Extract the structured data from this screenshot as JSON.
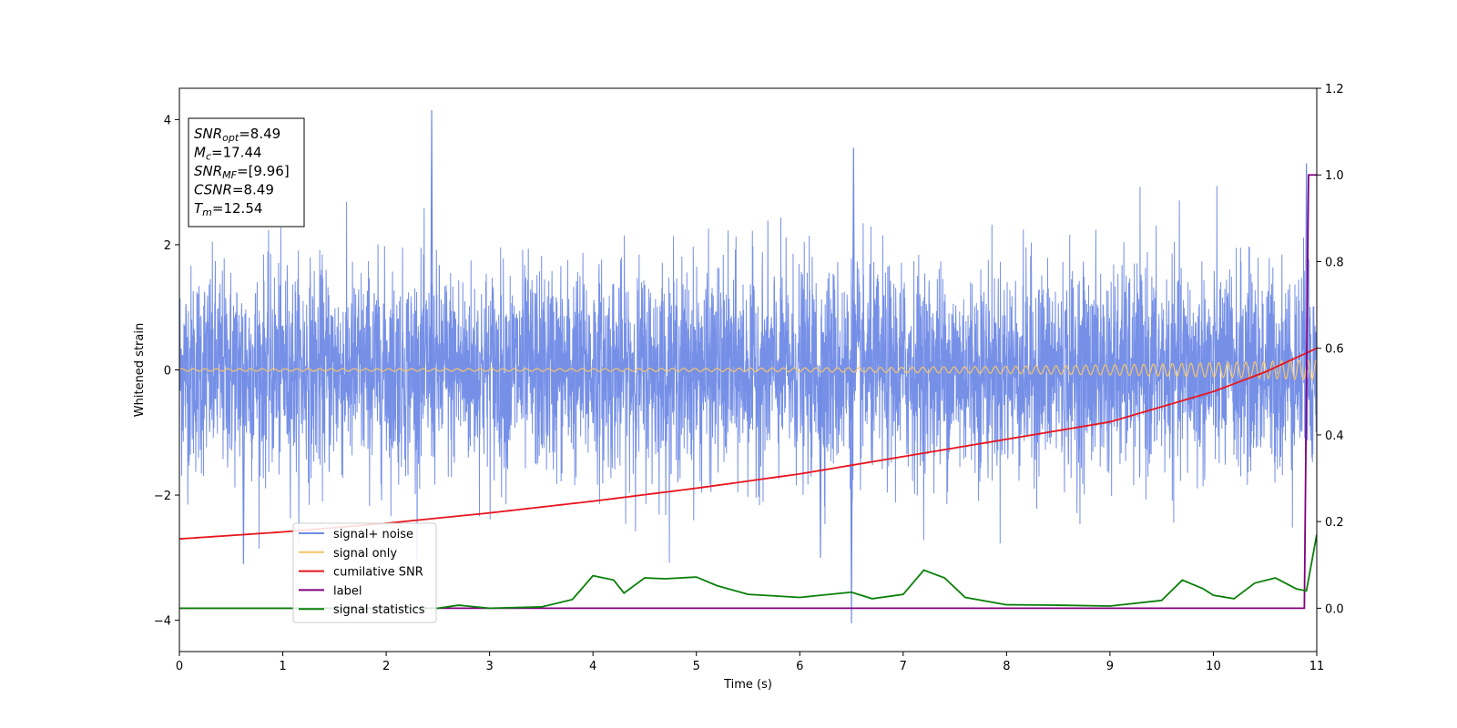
{
  "chart_data": {
    "type": "line",
    "xlabel": "Time (s)",
    "ylabel": "Whitened strain",
    "xlim": [
      0,
      11
    ],
    "ylim_left": [
      -4.5,
      4.5
    ],
    "ylim_right": [
      -0.1,
      1.2
    ],
    "x_ticks": [
      "0",
      "1",
      "2",
      "3",
      "4",
      "5",
      "6",
      "7",
      "8",
      "9",
      "10",
      "11"
    ],
    "y_ticks_left": [
      "−4",
      "−2",
      "0",
      "2",
      "4"
    ],
    "y_ticks_right": [
      "0.0",
      "0.2",
      "0.4",
      "0.6",
      "0.8",
      "1.0",
      "1.2"
    ],
    "grid": false,
    "legend_position": "lower-left",
    "colors": {
      "noise": "#6f8ae6",
      "signal": "#f5c46a",
      "snr": "#e8141c",
      "label": "#800080",
      "stats": "#0a800a"
    },
    "annotation": {
      "snr_opt": {
        "sym": "SNR",
        "sub": "opt",
        "val": "=8.49"
      },
      "mc": {
        "sym": "M",
        "sub": "c",
        "val": "=17.44"
      },
      "snr_mf": {
        "sym": "SNR",
        "sub": "MF",
        "val": "=[9.96]"
      },
      "csnr": {
        "sym": "CSNR",
        "sub": "",
        "val": "=8.49"
      },
      "tm": {
        "sym": "T",
        "sub": "m",
        "val": "=12.54"
      }
    },
    "series": [
      {
        "name": "signal+ noise",
        "axis": "left",
        "description": "noisy strain time series, fluctuating roughly between -2.5 and 2.5 with spikes to about ±4",
        "amplitude": 1.0,
        "spikes": [
          [
            2.44,
            4.15
          ],
          [
            6.52,
            3.55
          ],
          [
            6.5,
            -4.05
          ],
          [
            10.9,
            3.3
          ],
          [
            0.62,
            -3.1
          ],
          [
            6.2,
            -3.0
          ]
        ]
      },
      {
        "name": "signal only",
        "axis": "left",
        "description": "chirp oscillating around 0, amplitude growing from ~0.02 to ~0.15 near 11 s",
        "amp_start": 0.02,
        "amp_end": 0.16
      },
      {
        "name": "cumilative SNR",
        "axis": "right",
        "x": [
          0,
          1,
          2,
          3,
          4,
          5,
          6,
          7,
          8,
          9,
          10,
          10.5,
          11
        ],
        "y": [
          0.16,
          0.176,
          0.196,
          0.22,
          0.247,
          0.277,
          0.31,
          0.35,
          0.39,
          0.43,
          0.5,
          0.545,
          0.6
        ]
      },
      {
        "name": "label",
        "axis": "right",
        "x": [
          0,
          10.88,
          10.92,
          11
        ],
        "y": [
          0.0,
          0.0,
          1.0,
          1.0
        ]
      },
      {
        "name": "signal statistics",
        "axis": "right",
        "x": [
          0,
          0.5,
          1,
          1.5,
          2,
          2.5,
          2.7,
          3,
          3.5,
          3.8,
          4,
          4.2,
          4.3,
          4.5,
          4.7,
          5,
          5.2,
          5.5,
          6,
          6.5,
          6.7,
          7,
          7.2,
          7.4,
          7.6,
          8,
          8.5,
          9,
          9.5,
          9.7,
          9.9,
          10,
          10.2,
          10.4,
          10.6,
          10.8,
          10.9,
          11
        ],
        "y": [
          0.0,
          0.0,
          0.0,
          0.0,
          0.0,
          0.0,
          0.007,
          0.0,
          0.003,
          0.02,
          0.075,
          0.065,
          0.035,
          0.07,
          0.068,
          0.072,
          0.052,
          0.032,
          0.025,
          0.037,
          0.022,
          0.032,
          0.088,
          0.07,
          0.025,
          0.008,
          0.007,
          0.005,
          0.018,
          0.065,
          0.045,
          0.03,
          0.022,
          0.058,
          0.07,
          0.045,
          0.04,
          0.17
        ]
      }
    ]
  }
}
